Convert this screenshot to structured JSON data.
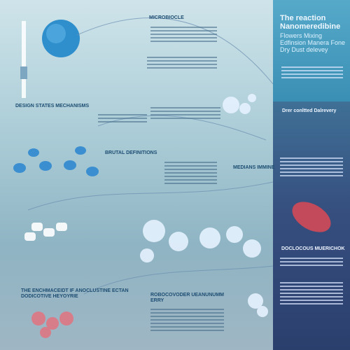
{
  "header": {
    "title": "The reaction Nanomeredibine",
    "subtitle": "Flowers Mixing Edfinsion Manera Fone Dry Dust delevey"
  },
  "sections": {
    "top_center": "MICROBIOCLE",
    "mid_left_a": "DESIGN STATES MECHANISMS",
    "mid_center": "BRUTAL DEFINITIONS",
    "mid_right": "MEDIANS IMMINE",
    "right_mid": "Drer conltted Dalrevery",
    "right_lower": "DOCLOCOUS MUERICHOK",
    "bottom_left": "THE ENCHMACEIDT IF ANOCLUSTINE ECTAN DODICOTIVE HEYOYRIE",
    "bottom_center": "ROBOCOVODER UEANUNUMM ERRY"
  },
  "colors": {
    "accent": "#3a8fb4",
    "dark_panel": "#2b3f6d",
    "molecule": "#e6f2ff"
  }
}
